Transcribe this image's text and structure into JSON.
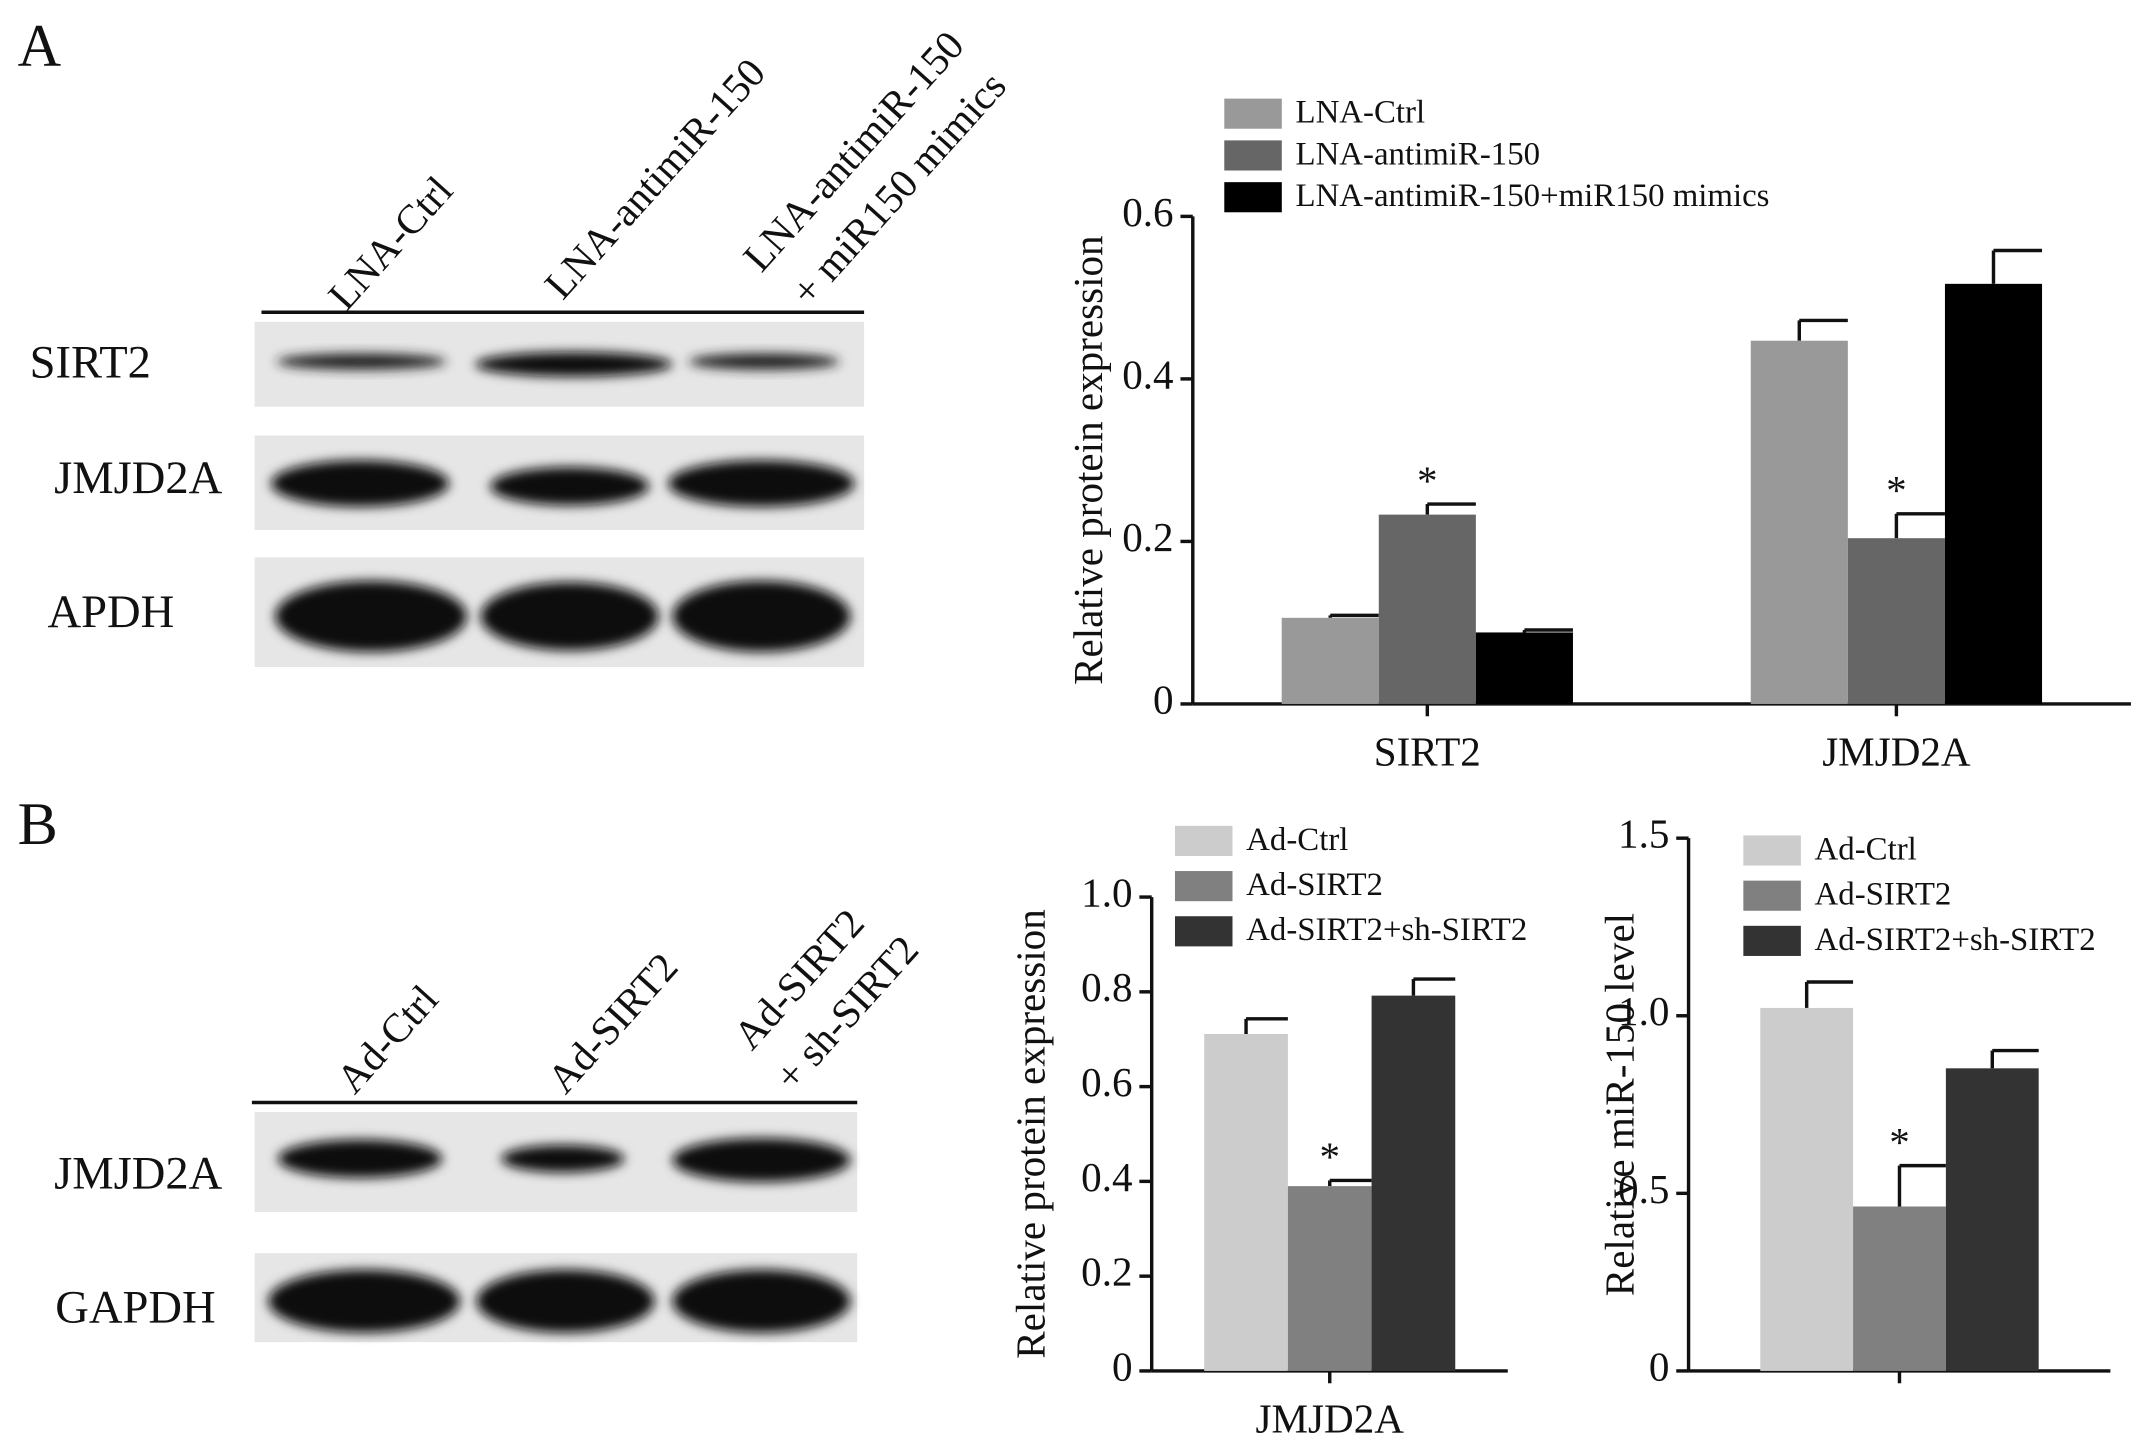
{
  "panels": [
    {
      "label": "A",
      "lanes": [
        [
          "LNA-Ctrl"
        ],
        [
          "LNA-antimiR-150"
        ],
        [
          "LNA-antimiR-150",
          "+ miR150 mimics"
        ]
      ],
      "rows": [
        "SIRT2",
        "JMJD2A",
        "APDH"
      ]
    },
    {
      "label": "B",
      "lanes": [
        [
          "Ad-Ctrl"
        ],
        [
          "Ad-SIRT2"
        ],
        [
          "Ad-SIRT2",
          "+ sh-SIRT2"
        ]
      ],
      "rows": [
        "JMJD2A",
        "GAPDH"
      ]
    }
  ],
  "chart_data": [
    {
      "type": "bar",
      "ylabel": "Relative protein expression",
      "categories": [
        "SIRT2",
        "JMJD2A"
      ],
      "series": [
        {
          "name": "LNA-Ctrl",
          "color": "#999999",
          "values": [
            0.106,
            0.447
          ],
          "errors": [
            0.003,
            0.025
          ]
        },
        {
          "name": "LNA-antimiR-150",
          "color": "#666666",
          "values": [
            0.233,
            0.204
          ],
          "errors": [
            0.013,
            0.03
          ],
          "annotations": [
            "*",
            "*"
          ]
        },
        {
          "name": "LNA-antimiR-150+miR150 mimics",
          "color": "#000000",
          "values": [
            0.088,
            0.517
          ],
          "errors": [
            0.003,
            0.041
          ]
        }
      ],
      "ylim": [
        0,
        0.6
      ],
      "yticks": [
        0,
        0.2,
        0.4,
        0.6
      ]
    },
    {
      "type": "bar",
      "ylabel": "Relative protein expression",
      "categories": [
        "JMJD2A"
      ],
      "series": [
        {
          "name": "Ad-Ctrl",
          "color": "#cccccc",
          "values": [
            0.711
          ],
          "errors": [
            0.032
          ]
        },
        {
          "name": "Ad-SIRT2",
          "color": "#808080",
          "values": [
            0.39
          ],
          "errors": [
            0.012
          ],
          "annotations": [
            "*"
          ]
        },
        {
          "name": "Ad-SIRT2+sh-SIRT2",
          "color": "#333333",
          "values": [
            0.792
          ],
          "errors": [
            0.035
          ]
        }
      ],
      "ylim": [
        0,
        1
      ],
      "yticks": [
        0,
        0.2,
        0.4,
        0.6,
        0.8,
        {
          "value": 1,
          "label": "1.0"
        }
      ]
    },
    {
      "type": "bar",
      "ylabel": "Relative miR-150 level",
      "categories": [
        null
      ],
      "series": [
        {
          "name": "Ad-Ctrl",
          "color": "#cccccc",
          "values": [
            1.022
          ],
          "errors": [
            0.073
          ]
        },
        {
          "name": "Ad-SIRT2",
          "color": "#808080",
          "values": [
            0.463
          ],
          "errors": [
            0.115
          ],
          "annotations": [
            "*"
          ]
        },
        {
          "name": "Ad-SIRT2+sh-SIRT2",
          "color": "#333333",
          "values": [
            0.852
          ],
          "errors": [
            0.05
          ]
        }
      ],
      "ylim": [
        0,
        1.5
      ],
      "yticks": [
        0,
        0.5,
        {
          "value": 1,
          "label": "1.0"
        },
        1.5
      ]
    }
  ]
}
